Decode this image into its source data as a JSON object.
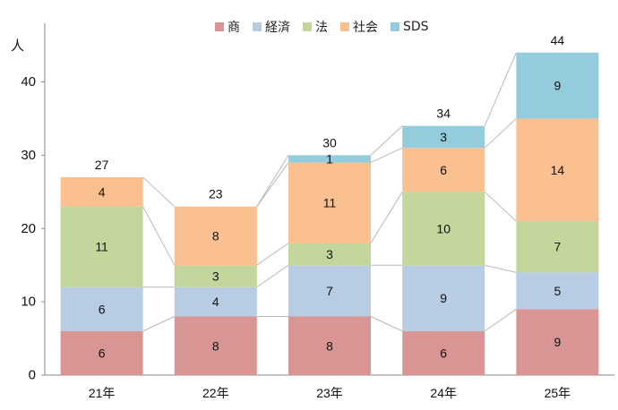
{
  "chart_data": {
    "type": "bar",
    "stacked": true,
    "categories": [
      "21年",
      "22年",
      "23年",
      "24年",
      "25年"
    ],
    "series": [
      {
        "name": "商",
        "color": "#d99594",
        "values": [
          6,
          8,
          8,
          6,
          9
        ]
      },
      {
        "name": "経済",
        "color": "#b8cce4",
        "values": [
          6,
          4,
          7,
          9,
          5
        ]
      },
      {
        "name": "法",
        "color": "#c3d69b",
        "values": [
          11,
          3,
          3,
          10,
          7
        ]
      },
      {
        "name": "社会",
        "color": "#fac090",
        "values": [
          4,
          8,
          11,
          6,
          14
        ]
      },
      {
        "name": "SDS",
        "color": "#93cddd",
        "values": [
          0,
          0,
          1,
          3,
          9
        ]
      }
    ],
    "totals": [
      27,
      23,
      30,
      34,
      44
    ],
    "ylabel": "人",
    "ylim": [
      0,
      48
    ],
    "yticks": [
      0,
      10,
      20,
      30,
      40
    ],
    "legend_position": "top"
  }
}
